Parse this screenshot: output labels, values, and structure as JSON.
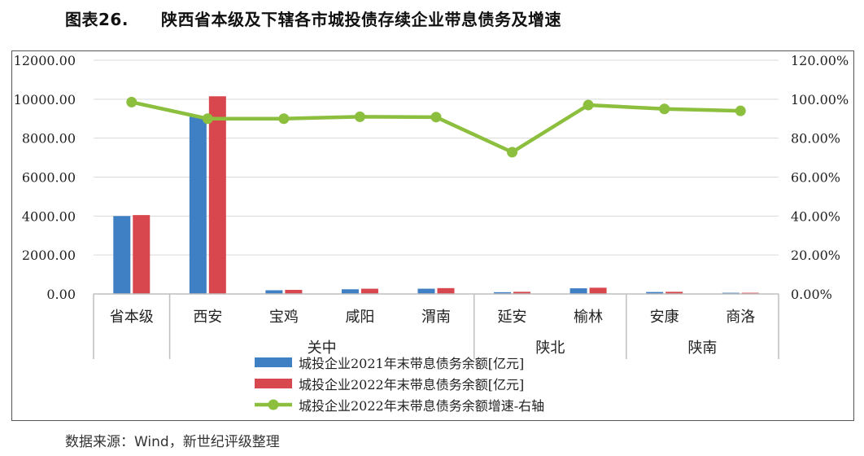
{
  "figure": {
    "number": "图表26.",
    "title": "陕西省本级及下辖各市城投债存续企业带息债务及增速"
  },
  "source": "数据来源：Wind，新世纪评级整理",
  "colors": {
    "series_2021": "#3f7fc4",
    "series_2022": "#d8474d",
    "growth_line": "#8dbf3f",
    "grid": "#d9d9d9"
  },
  "chart_data": {
    "type": "bar",
    "categories": [
      "省本级",
      "西安",
      "宝鸡",
      "咸阳",
      "渭南",
      "延安",
      "榆林",
      "安康",
      "商洛"
    ],
    "groups": [
      {
        "label": "关中",
        "categories": [
          "西安",
          "宝鸡",
          "咸阳",
          "渭南"
        ]
      },
      {
        "label": "陕北",
        "categories": [
          "延安",
          "榆林"
        ]
      },
      {
        "label": "陕南",
        "categories": [
          "安康",
          "商洛"
        ]
      }
    ],
    "series": [
      {
        "name": "城投企业2021年末带息债务余额[亿元]",
        "type": "bar",
        "axis": "left",
        "values": [
          4000,
          9100,
          190,
          240,
          270,
          90,
          290,
          100,
          60
        ]
      },
      {
        "name": "城投企业2022年末带息债务余额[亿元]",
        "type": "bar",
        "axis": "left",
        "values": [
          4050,
          10150,
          210,
          270,
          300,
          110,
          320,
          110,
          60
        ]
      },
      {
        "name": "城投企业2022年末带息债务余额增速-右轴",
        "type": "line",
        "axis": "right",
        "values": [
          98.5,
          90.0,
          90.0,
          91.0,
          90.8,
          72.8,
          97.0,
          95.0,
          94.0
        ]
      }
    ],
    "y_left": {
      "min": 0,
      "max": 12000,
      "ticks": [
        "0.00",
        "2000.00",
        "4000.00",
        "6000.00",
        "8000.00",
        "10000.00",
        "12000.00"
      ]
    },
    "y_right": {
      "min": 0,
      "max": 120,
      "ticks": [
        "0.00%",
        "20.00%",
        "40.00%",
        "60.00%",
        "80.00%",
        "100.00%",
        "120.00%"
      ]
    },
    "grid": true,
    "legend_position": "bottom"
  }
}
